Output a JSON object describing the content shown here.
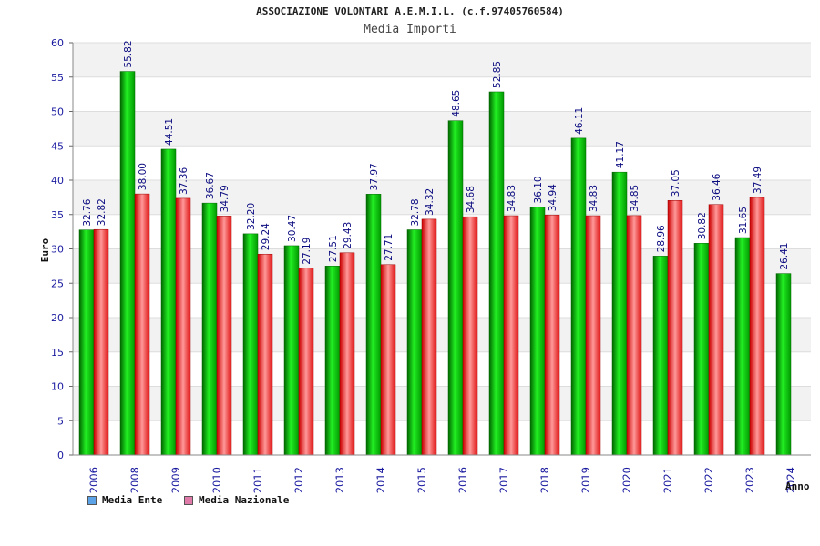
{
  "chart_title": "ASSOCIAZIONE VOLONTARI A.E.M.I.L. (c.f.97405760584)",
  "chart_subtitle": "Media Importi",
  "legend": [
    {
      "label": "Media Ente",
      "color": "#5ba3e6"
    },
    {
      "label": "Media Nazionale",
      "color": "#e07aa8"
    }
  ],
  "chart_data": {
    "type": "bar",
    "xlabel": "Anno",
    "ylabel": "Euro",
    "ylim": [
      0,
      60
    ],
    "yticks": [
      0,
      5,
      10,
      15,
      20,
      25,
      30,
      35,
      40,
      45,
      50,
      55,
      60
    ],
    "categories": [
      "2006",
      "2008",
      "2009",
      "2010",
      "2011",
      "2012",
      "2013",
      "2014",
      "2015",
      "2016",
      "2017",
      "2018",
      "2019",
      "2020",
      "2021",
      "2022",
      "2023",
      "2024"
    ],
    "series": [
      {
        "name": "Media Ente",
        "color": "#11cc11",
        "values": [
          32.76,
          55.82,
          44.51,
          36.67,
          32.2,
          30.47,
          27.51,
          37.97,
          32.78,
          48.65,
          52.85,
          36.1,
          46.11,
          41.17,
          28.96,
          30.82,
          31.65,
          26.41
        ],
        "labels": [
          "32.76",
          "55.82",
          "44.51",
          "36.67",
          "32.20",
          "30.47",
          "27.51",
          "37.97",
          "32.78",
          "48.65",
          "52.85",
          "36.10",
          "46.11",
          "41.17",
          "28.96",
          "30.82",
          "31.65",
          "26.41"
        ]
      },
      {
        "name": "Media Nazionale",
        "color": "#ee2222",
        "values": [
          32.82,
          38.0,
          37.36,
          34.79,
          29.24,
          27.19,
          29.43,
          27.71,
          34.32,
          34.68,
          34.83,
          34.94,
          34.83,
          34.85,
          37.05,
          36.46,
          37.49,
          null
        ],
        "labels": [
          "32.82",
          "38.00",
          "37.36",
          "34.79",
          "29.24",
          "27.19",
          "29.43",
          "27.71",
          "34.32",
          "34.68",
          "34.83",
          "34.94",
          "34.83",
          "34.85",
          "37.05",
          "36.46",
          "37.49",
          ""
        ]
      }
    ],
    "grid": true,
    "legend_position": "bottom-left"
  }
}
